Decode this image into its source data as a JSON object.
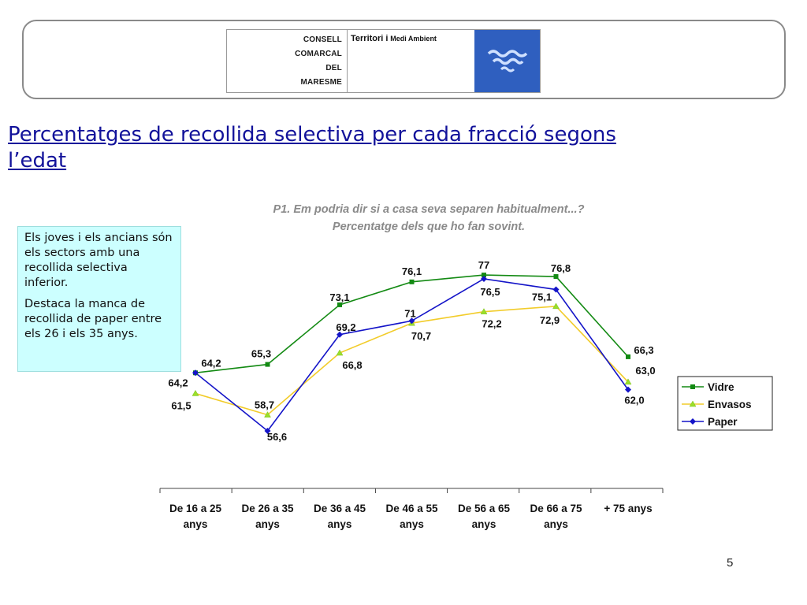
{
  "header": {
    "logo_lines": [
      "CONSELL",
      "COMARCAL",
      "DEL",
      "MARESME"
    ],
    "logo_dept_a": "Territori i",
    "logo_dept_b": "Medi Ambient",
    "logo_color": "#2f5fbf"
  },
  "slide": {
    "title_line1": "Percentatges de recollida selectiva per cada fracció segons",
    "title_line2": "l’edat",
    "page_number": "5"
  },
  "callout": {
    "p1": "Els joves i els ancians són els sectors amb una recollida selectiva inferior.",
    "p2": "Destaca la manca de recollida de paper entre els 26 i els 35 anys."
  },
  "chart_data": {
    "type": "line",
    "subtitle_line1": "P1. Em podria dir si a casa seva separen habitualment...?",
    "subtitle_line2": "Percentatge dels que ho fan sovint.",
    "categories": [
      [
        "De 16 a 25",
        "anys"
      ],
      [
        "De 26 a 35",
        "anys"
      ],
      [
        "De 36 a 45",
        "anys"
      ],
      [
        "De 46 a 55",
        "anys"
      ],
      [
        "De 56 a 65",
        "anys"
      ],
      [
        "De 66 a 75",
        "anys"
      ],
      [
        "+ 75 anys",
        ""
      ]
    ],
    "series": [
      {
        "name": "Vidre",
        "color": "#138a13",
        "marker": "square",
        "values": [
          64.2,
          65.3,
          73.1,
          76.1,
          77,
          76.8,
          66.3
        ],
        "labels": [
          "64,2",
          "65,3",
          "73,1",
          "76,1",
          "77",
          "76,8",
          "66,3"
        ]
      },
      {
        "name": "Envasos",
        "color": "#f2cc2a",
        "marker": "triangle",
        "values": [
          61.5,
          58.7,
          66.8,
          70.7,
          72.2,
          72.9,
          63.0
        ],
        "labels": [
          "61,5",
          "58,7",
          "66,8",
          "70,7",
          "72,2",
          "72,9",
          "63,0"
        ]
      },
      {
        "name": "Paper",
        "color": "#1414c8",
        "marker": "diamond",
        "values": [
          64.2,
          56.6,
          69.2,
          71,
          76.5,
          75.1,
          62.0
        ],
        "labels": [
          "64,2",
          "56,6",
          "69,2",
          "71",
          "76,5",
          "75,1",
          "62,0"
        ]
      }
    ],
    "legend_position": "right",
    "grid": false
  }
}
